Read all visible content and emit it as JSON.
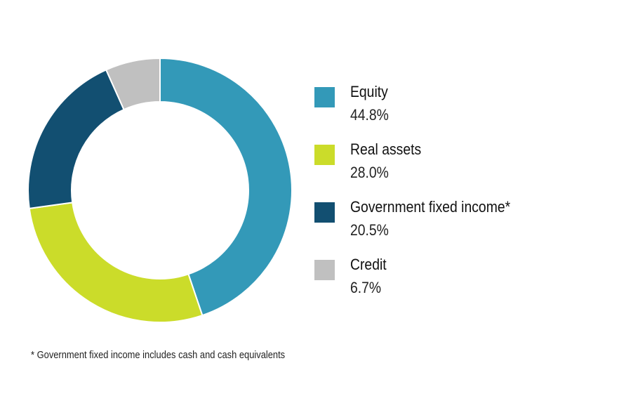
{
  "chart_data": {
    "type": "pie",
    "style": "donut",
    "categories": [
      "Equity",
      "Real assets",
      "Government fixed income*",
      "Credit"
    ],
    "values": [
      44.8,
      28.0,
      20.5,
      6.7
    ],
    "value_labels": [
      "44.8%",
      "28.0%",
      "20.5%",
      "6.7%"
    ],
    "colors": [
      "#3399b8",
      "#cbdc2a",
      "#124f71",
      "#c0c0c0"
    ],
    "legend_position": "right",
    "footnote": "* Government fixed income includes cash and cash equivalents"
  },
  "legend": {
    "items": [
      {
        "label": "Equity",
        "value": "44.8%",
        "color": "#3399b8"
      },
      {
        "label": "Real assets",
        "value": "28.0%",
        "color": "#cbdc2a"
      },
      {
        "label": "Government fixed income*",
        "value": "20.5%",
        "color": "#124f71"
      },
      {
        "label": "Credit",
        "value": "6.7%",
        "color": "#c0c0c0"
      }
    ]
  }
}
